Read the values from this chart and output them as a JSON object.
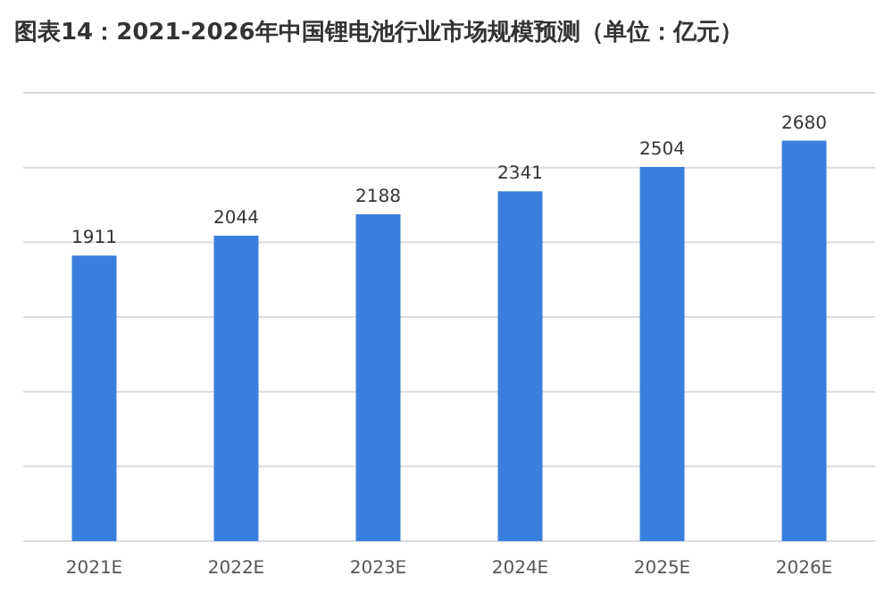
{
  "chart_data": {
    "type": "bar",
    "title": "图表14：2021-2026年中国锂电池行业市场规模预测（单位：亿元）",
    "categories": [
      "2021E",
      "2022E",
      "2023E",
      "2024E",
      "2025E",
      "2026E"
    ],
    "values": [
      1911,
      2044,
      2188,
      2341,
      2504,
      2680
    ],
    "color": "#3a7fdd",
    "ylim": [
      0,
      3000
    ],
    "yticks": [
      {
        "value": 0,
        "label": null
      },
      {
        "value": 500,
        "label": null
      },
      {
        "value": 1000,
        "label": null
      },
      {
        "value": 1500,
        "label": null
      },
      {
        "value": 2000,
        "label": null
      },
      {
        "value": 2500,
        "label": null
      },
      {
        "value": 3000,
        "label": null
      }
    ],
    "grid": "y",
    "tick_labels": "x",
    "data_labels": true
  }
}
